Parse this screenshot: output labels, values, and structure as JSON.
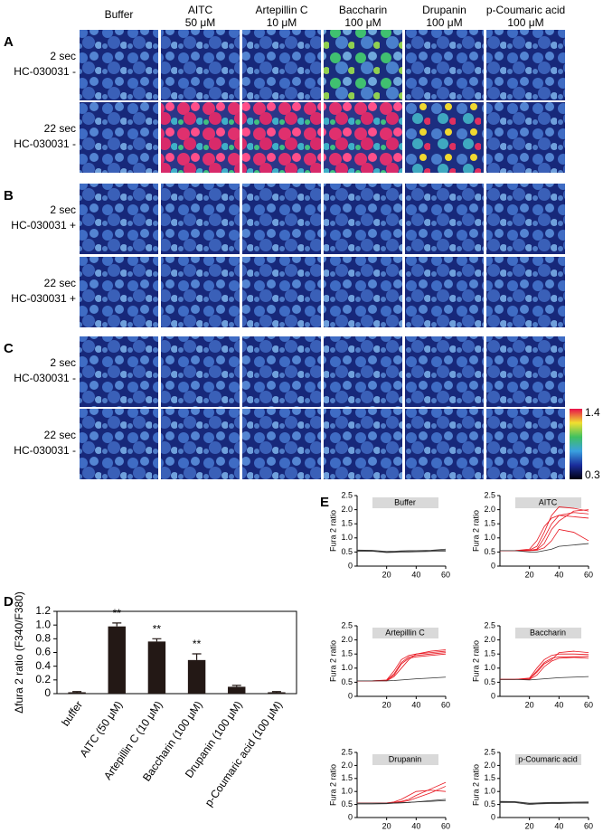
{
  "image_panel": {
    "panel_labels": [
      "A",
      "B",
      "C"
    ],
    "column_headers": [
      [
        "Buffer"
      ],
      [
        "AITC",
        "50 μM"
      ],
      [
        "Artepillin C",
        "10 μM"
      ],
      [
        "Baccharin",
        "100 μM"
      ],
      [
        "Drupanin",
        "100 μM"
      ],
      [
        "p-Coumaric acid",
        "100 μM"
      ]
    ],
    "rows": [
      {
        "time": "2 sec",
        "treatment": "HC-030031 -"
      },
      {
        "time": "22 sec",
        "treatment": "HC-030031 -"
      },
      {
        "time": "2 sec",
        "treatment": "HC-030031 +"
      },
      {
        "time": "22 sec",
        "treatment": "HC-030031 +"
      },
      {
        "time": "2 sec",
        "treatment": "HC-030031 -"
      },
      {
        "time": "22 sec",
        "treatment": "HC-030031 -"
      }
    ],
    "colorbar": {
      "max": 1.4,
      "min": 0.3
    }
  },
  "chart_data": [
    {
      "type": "bar",
      "panel_label": "D",
      "y_label": "Δfura 2 ratio (F340/F380)",
      "categories": [
        "buffer",
        "AITC (50 μM)",
        "Artepillin C (10 μM)",
        "Baccharin (100 μM)",
        "Drupanin (100 μM)",
        "p-Coumaric acid (100 μM)"
      ],
      "values": [
        0.02,
        0.98,
        0.76,
        0.49,
        0.1,
        0.02
      ],
      "errors": [
        0.01,
        0.05,
        0.04,
        0.09,
        0.02,
        0.01
      ],
      "significance": [
        null,
        "**",
        "**",
        "**",
        null,
        null
      ],
      "color": "#231815",
      "ylim": [
        0,
        1.2
      ],
      "yticks": [
        0,
        0.2,
        0.4,
        0.6,
        0.8,
        {
          "value": 1.0,
          "label": "1.0"
        },
        1.2
      ]
    },
    {
      "type": "line",
      "panel_label": "E",
      "title": "Buffer",
      "y_label": "Fura 2 ratio",
      "x": [
        0,
        10,
        20,
        25,
        30,
        35,
        40,
        50,
        60
      ],
      "series": [
        {
          "color": "#333333",
          "values": [
            0.55,
            0.55,
            0.5,
            0.5,
            0.52,
            0.52,
            0.53,
            0.55,
            0.57
          ]
        },
        {
          "color": "#333333",
          "values": [
            0.52,
            0.53,
            0.48,
            0.49,
            0.5,
            0.5,
            0.51,
            0.52,
            0.53
          ]
        },
        {
          "color": "#333333",
          "values": [
            0.57,
            0.56,
            0.52,
            0.53,
            0.54,
            0.55,
            0.55,
            0.56,
            0.6
          ]
        }
      ],
      "xlim": [
        0,
        60
      ],
      "xticks": [
        20,
        40,
        60
      ],
      "ylim": [
        0,
        2.5
      ],
      "yticks": [
        0,
        0.5,
        {
          "value": 1.0,
          "label": "1.0"
        },
        1.5,
        {
          "value": 2.0,
          "label": "2.0"
        },
        2.5
      ]
    },
    {
      "type": "line",
      "title": "AITC",
      "y_label": "Fura 2 ratio",
      "x": [
        0,
        10,
        20,
        25,
        30,
        35,
        40,
        50,
        60
      ],
      "series": [
        {
          "color": "#e8141e",
          "values": [
            0.55,
            0.55,
            0.56,
            0.6,
            1.0,
            1.5,
            1.8,
            1.9,
            1.85
          ]
        },
        {
          "color": "#e8141e",
          "values": [
            0.55,
            0.55,
            0.6,
            0.9,
            1.4,
            1.7,
            1.8,
            1.75,
            1.7
          ]
        },
        {
          "color": "#e8141e",
          "values": [
            0.55,
            0.55,
            0.55,
            0.58,
            0.8,
            1.3,
            1.6,
            1.95,
            2.0
          ]
        },
        {
          "color": "#e8141e",
          "values": [
            0.55,
            0.55,
            0.57,
            0.7,
            1.2,
            1.8,
            2.1,
            2.05,
            1.95
          ]
        },
        {
          "color": "#e8141e",
          "values": [
            0.55,
            0.55,
            0.55,
            0.56,
            0.65,
            0.9,
            1.3,
            1.2,
            0.9
          ]
        },
        {
          "color": "#333333",
          "values": [
            0.55,
            0.55,
            0.5,
            0.5,
            0.55,
            0.6,
            0.7,
            0.75,
            0.8
          ]
        }
      ],
      "xlim": [
        0,
        60
      ],
      "xticks": [
        20,
        40,
        60
      ],
      "ylim": [
        0,
        2.5
      ],
      "yticks": [
        0,
        0.5,
        {
          "value": 1.0,
          "label": "1.0"
        },
        1.5,
        {
          "value": 2.0,
          "label": "2.0"
        },
        2.5
      ]
    },
    {
      "type": "line",
      "title": "Artepillin C",
      "y_label": "Fura 2 ratio",
      "x": [
        0,
        10,
        20,
        25,
        30,
        35,
        40,
        50,
        60
      ],
      "series": [
        {
          "color": "#e8141e",
          "values": [
            0.55,
            0.55,
            0.56,
            0.8,
            1.2,
            1.4,
            1.45,
            1.5,
            1.55
          ]
        },
        {
          "color": "#e8141e",
          "values": [
            0.55,
            0.55,
            0.58,
            0.9,
            1.3,
            1.45,
            1.5,
            1.55,
            1.6
          ]
        },
        {
          "color": "#e8141e",
          "values": [
            0.55,
            0.55,
            0.55,
            0.7,
            1.0,
            1.3,
            1.5,
            1.6,
            1.65
          ]
        },
        {
          "color": "#e8141e",
          "values": [
            0.55,
            0.55,
            0.57,
            0.75,
            1.15,
            1.35,
            1.4,
            1.45,
            1.5
          ]
        },
        {
          "color": "#333333",
          "values": [
            0.55,
            0.55,
            0.55,
            0.56,
            0.58,
            0.6,
            0.62,
            0.65,
            0.68
          ]
        }
      ],
      "xlim": [
        0,
        60
      ],
      "xticks": [
        20,
        40,
        60
      ],
      "ylim": [
        0,
        2.5
      ],
      "yticks": [
        0,
        0.5,
        {
          "value": 1.0,
          "label": "1.0"
        },
        1.5,
        {
          "value": 2.0,
          "label": "2.0"
        },
        2.5
      ]
    },
    {
      "type": "line",
      "title": "Baccharin",
      "y_label": "Fura 2 ratio",
      "x": [
        0,
        10,
        20,
        25,
        30,
        35,
        40,
        50,
        60
      ],
      "series": [
        {
          "color": "#e8141e",
          "values": [
            0.6,
            0.6,
            0.62,
            0.9,
            1.2,
            1.35,
            1.4,
            1.4,
            1.42
          ]
        },
        {
          "color": "#e8141e",
          "values": [
            0.6,
            0.6,
            0.65,
            1.0,
            1.3,
            1.45,
            1.5,
            1.5,
            1.48
          ]
        },
        {
          "color": "#e8141e",
          "values": [
            0.6,
            0.6,
            0.6,
            0.75,
            1.05,
            1.25,
            1.35,
            1.38,
            1.35
          ]
        },
        {
          "color": "#e8141e",
          "values": [
            0.6,
            0.6,
            0.62,
            0.85,
            1.15,
            1.3,
            1.55,
            1.6,
            1.55
          ]
        },
        {
          "color": "#333333",
          "values": [
            0.6,
            0.6,
            0.58,
            0.6,
            0.62,
            0.64,
            0.66,
            0.68,
            0.7
          ]
        }
      ],
      "xlim": [
        0,
        60
      ],
      "xticks": [
        20,
        40,
        60
      ],
      "ylim": [
        0,
        2.5
      ],
      "yticks": [
        0,
        0.5,
        {
          "value": 1.0,
          "label": "1.0"
        },
        1.5,
        {
          "value": 2.0,
          "label": "2.0"
        },
        2.5
      ]
    },
    {
      "type": "line",
      "title": "Drupanin",
      "y_label": "Fura 2 ratio",
      "x": [
        0,
        10,
        20,
        25,
        30,
        35,
        40,
        50,
        60
      ],
      "series": [
        {
          "color": "#e8141e",
          "values": [
            0.55,
            0.55,
            0.56,
            0.58,
            0.62,
            0.7,
            0.85,
            1.1,
            1.35
          ]
        },
        {
          "color": "#e8141e",
          "values": [
            0.55,
            0.55,
            0.55,
            0.57,
            0.6,
            0.65,
            0.75,
            0.95,
            1.2
          ]
        },
        {
          "color": "#e8141e",
          "values": [
            0.55,
            0.55,
            0.56,
            0.6,
            0.7,
            0.85,
            1.0,
            1.05,
            1.0
          ]
        },
        {
          "color": "#333333",
          "values": [
            0.52,
            0.52,
            0.53,
            0.55,
            0.56,
            0.58,
            0.6,
            0.65,
            0.7
          ]
        },
        {
          "color": "#333333",
          "values": [
            0.55,
            0.55,
            0.55,
            0.56,
            0.57,
            0.58,
            0.6,
            0.62,
            0.65
          ]
        }
      ],
      "xlim": [
        0,
        60
      ],
      "xticks": [
        20,
        40,
        60
      ],
      "ylim": [
        0,
        2.5
      ],
      "yticks": [
        0,
        0.5,
        {
          "value": 1.0,
          "label": "1.0"
        },
        1.5,
        {
          "value": 2.0,
          "label": "2.0"
        },
        2.5
      ]
    },
    {
      "type": "line",
      "title": "p-Coumaric acid",
      "y_label": "Fura 2 ratio",
      "x": [
        0,
        10,
        20,
        25,
        30,
        35,
        40,
        50,
        60
      ],
      "series": [
        {
          "color": "#333333",
          "values": [
            0.6,
            0.6,
            0.53,
            0.54,
            0.55,
            0.56,
            0.56,
            0.57,
            0.57
          ]
        },
        {
          "color": "#333333",
          "values": [
            0.58,
            0.58,
            0.5,
            0.52,
            0.53,
            0.54,
            0.54,
            0.55,
            0.55
          ]
        },
        {
          "color": "#333333",
          "values": [
            0.62,
            0.61,
            0.55,
            0.56,
            0.57,
            0.58,
            0.58,
            0.59,
            0.6
          ]
        }
      ],
      "xlim": [
        0,
        60
      ],
      "xticks": [
        20,
        40,
        60
      ],
      "ylim": [
        0,
        2.5
      ],
      "yticks": [
        0,
        0.5,
        {
          "value": 1.0,
          "label": "1.0"
        },
        1.5,
        {
          "value": 2.0,
          "label": "2.0"
        },
        2.5
      ]
    }
  ]
}
